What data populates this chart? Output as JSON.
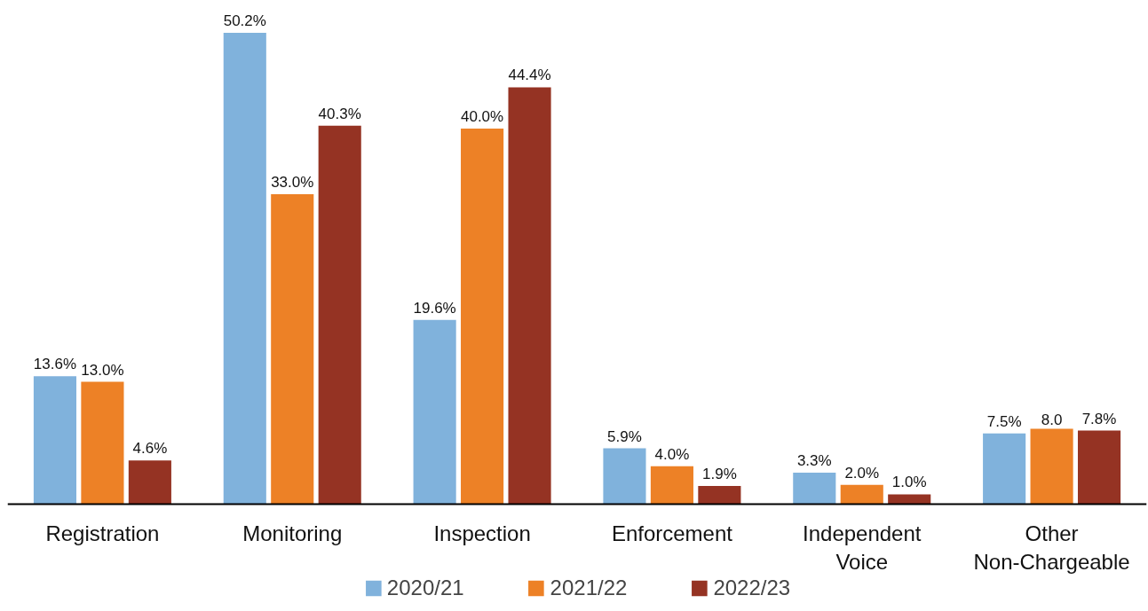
{
  "chart_data": {
    "type": "bar",
    "categories": [
      "Registration",
      "Monitoring",
      "Inspection",
      "Enforcement",
      "Independent\nVoice",
      "Other\nNon-Chargeable"
    ],
    "series": [
      {
        "name": "2020/21",
        "color": "#80b2dc",
        "values": [
          13.6,
          50.2,
          19.6,
          5.9,
          3.3,
          7.5
        ],
        "value_labels": [
          "13.6%",
          "50.2%",
          "19.6%",
          "5.9%",
          "3.3%",
          "7.5%"
        ]
      },
      {
        "name": "2021/22",
        "color": "#ed8126",
        "values": [
          13.0,
          33.0,
          40.0,
          4.0,
          2.0,
          8.0
        ],
        "value_labels": [
          "13.0%",
          "33.0%",
          "40.0%",
          "4.0%",
          "2.0%",
          "8.0"
        ]
      },
      {
        "name": "2022/23",
        "color": "#953323",
        "values": [
          4.6,
          40.3,
          44.4,
          1.9,
          1.0,
          7.8
        ],
        "value_labels": [
          "4.6%",
          "40.3%",
          "44.4%",
          "1.9%",
          "1.0%",
          "7.8%"
        ]
      }
    ],
    "legend": "bottom",
    "grid": false
  }
}
